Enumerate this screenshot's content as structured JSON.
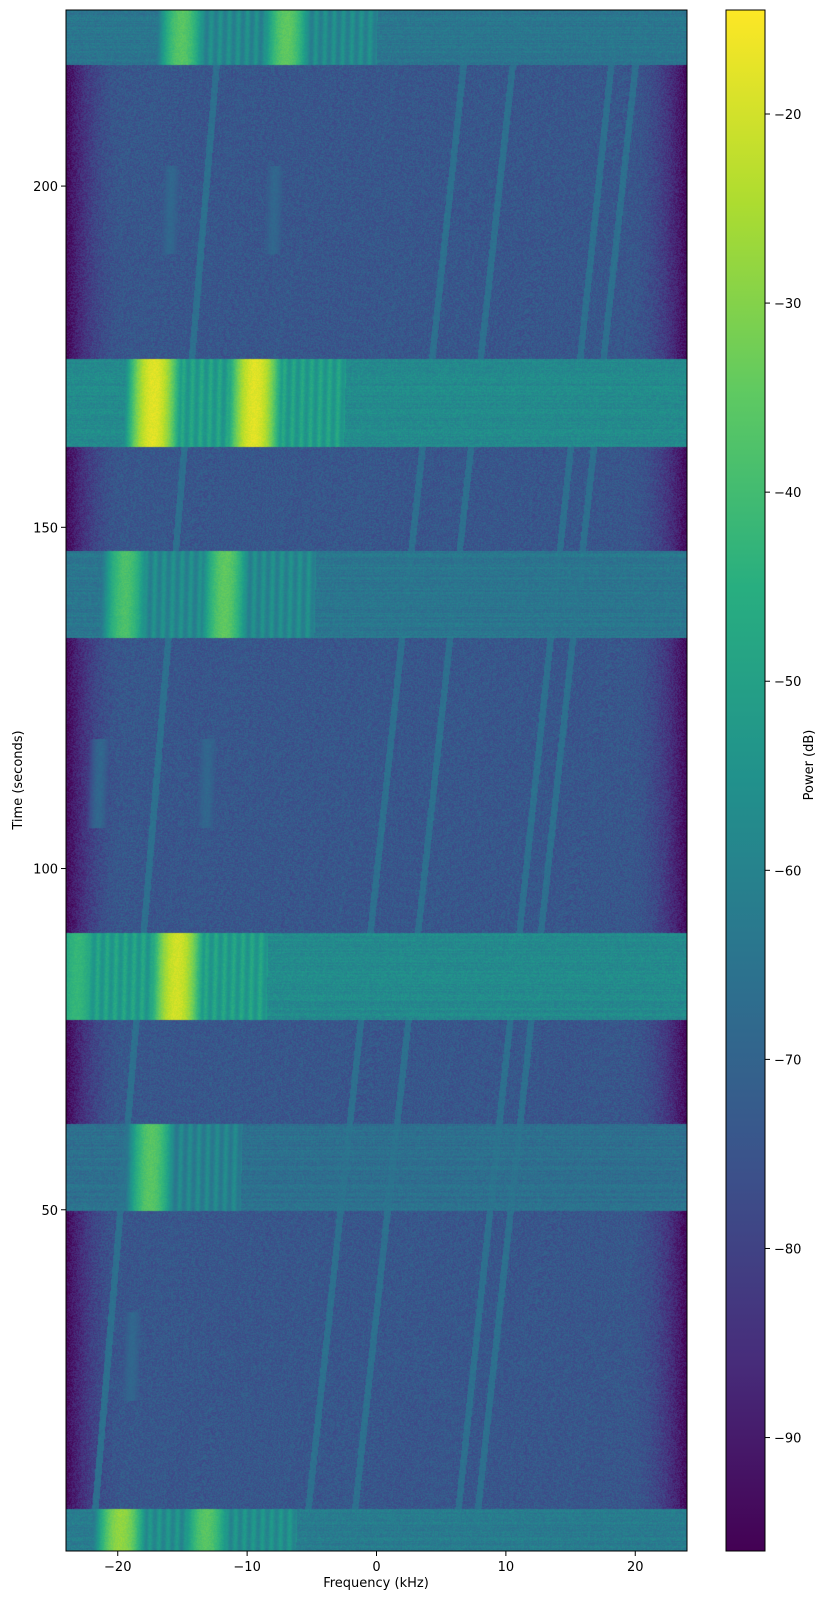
{
  "chart_data": {
    "type": "heatmap",
    "title": "",
    "xlabel": "Frequency (kHz)",
    "ylabel": "Time (seconds)",
    "colorbar_label": "Power (dB)",
    "colormap": "viridis",
    "xlim": [
      -24,
      24
    ],
    "ylim": [
      0,
      225.8
    ],
    "xticks": [
      -20,
      -10,
      0,
      10,
      20
    ],
    "xtick_labels": [
      "−20",
      "−10",
      "0",
      "10",
      "20"
    ],
    "yticks": [
      50,
      100,
      150,
      200
    ],
    "ytick_labels": [
      "50",
      "100",
      "150",
      "200"
    ],
    "clim": [
      -96,
      -14.5
    ],
    "cticks": [
      -90,
      -80,
      -70,
      -60,
      -50,
      -40,
      -30,
      -20
    ],
    "ctick_labels": [
      "−90",
      "−80",
      "−70",
      "−60",
      "−50",
      "−40",
      "−30",
      "−20"
    ],
    "background_level_db": -74,
    "edge_level_db": -95,
    "strong_bursts": [
      {
        "t_start": 0.0,
        "t_end": 6.2,
        "band_level_db": -62,
        "tones": [
          {
            "f": -19.8,
            "db": -28
          },
          {
            "f": -13.2,
            "db": -36
          }
        ]
      },
      {
        "t_start": 77.8,
        "t_end": 90.6,
        "band_level_db": -57,
        "tones": [
          {
            "f": -23.2,
            "db": -42
          },
          {
            "f": -15.5,
            "db": -20
          }
        ]
      },
      {
        "t_start": 49.8,
        "t_end": 62.6,
        "band_level_db": -66,
        "tones": [
          {
            "f": -17.5,
            "db": -36
          }
        ]
      },
      {
        "t_start": 133.8,
        "t_end": 146.6,
        "band_level_db": -64,
        "tones": [
          {
            "f": -19.5,
            "db": -38
          },
          {
            "f": -11.8,
            "db": -35
          }
        ]
      },
      {
        "t_start": 161.8,
        "t_end": 174.6,
        "band_level_db": -57,
        "tones": [
          {
            "f": -17.3,
            "db": -18
          },
          {
            "f": -9.5,
            "db": -18
          }
        ]
      },
      {
        "t_start": 217.8,
        "t_end": 225.8,
        "band_level_db": -64,
        "tones": [
          {
            "f": -15.1,
            "db": -36
          },
          {
            "f": -7.0,
            "db": -35
          }
        ]
      }
    ],
    "faint_bursts": [
      {
        "t_start": 22.0,
        "t_end": 35.0,
        "tones": [
          {
            "f": -19.0
          }
        ]
      },
      {
        "t_start": 106.0,
        "t_end": 119.0,
        "tones": [
          {
            "f": -21.5
          },
          {
            "f": -13.2
          }
        ]
      },
      {
        "t_start": 190.0,
        "t_end": 203.0,
        "tones": [
          {
            "f": -16.0
          },
          {
            "f": -8.0
          }
        ]
      }
    ],
    "drift_lines": [
      {
        "f_at_t0": -5.6,
        "f_at_tmax": 7.2
      },
      {
        "f_at_t0": -2.0,
        "f_at_tmax": 11.0
      },
      {
        "f_at_t0": 6.0,
        "f_at_tmax": 18.6
      },
      {
        "f_at_t0": 7.5,
        "f_at_tmax": 20.5
      },
      {
        "f_at_t0": -22.0,
        "f_at_tmax": -12.0
      }
    ]
  }
}
